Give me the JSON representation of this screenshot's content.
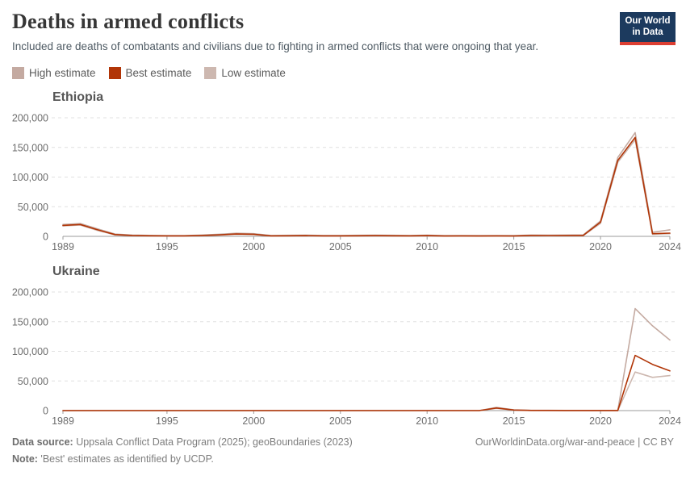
{
  "header": {
    "title": "Deaths in armed conflicts",
    "subtitle": "Included are deaths of combatants and civilians due to fighting in armed conflicts that were ongoing that year.",
    "logo": {
      "line1": "Our World",
      "line2": "in Data",
      "bg_color": "#1c3a5e",
      "bar_color": "#dc3e32"
    }
  },
  "legend": {
    "items": [
      {
        "label": "High estimate",
        "color": "#C4AAA1"
      },
      {
        "label": "Best estimate",
        "color": "#B13507"
      },
      {
        "label": "Low estimate",
        "color": "#CDB8B0"
      }
    ]
  },
  "chart_data": [
    {
      "type": "line",
      "title": "Ethiopia",
      "xlabel": "",
      "ylabel": "",
      "grid": true,
      "ylim": [
        0,
        200000
      ],
      "yticks": [
        0,
        50000,
        100000,
        150000,
        200000
      ],
      "xticks": [
        1989,
        1995,
        2000,
        2005,
        2010,
        2015,
        2020,
        2024
      ],
      "x": [
        1989,
        1990,
        1991,
        1992,
        1993,
        1994,
        1995,
        1996,
        1997,
        1998,
        1999,
        2000,
        2001,
        2002,
        2003,
        2004,
        2005,
        2006,
        2007,
        2008,
        2009,
        2010,
        2011,
        2012,
        2013,
        2014,
        2015,
        2016,
        2017,
        2018,
        2019,
        2020,
        2021,
        2022,
        2023,
        2024
      ],
      "series": [
        {
          "name": "High estimate",
          "color": "#C4AAA1",
          "values": [
            20000,
            21500,
            12500,
            3800,
            2200,
            1600,
            1300,
            1300,
            2200,
            3500,
            5200,
            4500,
            1500,
            1800,
            2000,
            1500,
            1500,
            1800,
            2000,
            1800,
            1500,
            2000,
            1200,
            1400,
            1200,
            1400,
            1200,
            2200,
            2000,
            2200,
            2500,
            26000,
            133000,
            175000,
            7000,
            11000
          ]
        },
        {
          "name": "Best estimate",
          "color": "#B13507",
          "values": [
            18500,
            20000,
            11000,
            3000,
            1500,
            1000,
            800,
            800,
            1500,
            2500,
            4000,
            3500,
            800,
            1000,
            1200,
            800,
            800,
            1000,
            1200,
            1000,
            800,
            1200,
            600,
            800,
            600,
            800,
            600,
            1500,
            1300,
            1500,
            1500,
            24000,
            128000,
            167000,
            4500,
            5500
          ]
        },
        {
          "name": "Low estimate",
          "color": "#CDB8B0",
          "values": [
            17500,
            19000,
            10000,
            2500,
            1200,
            800,
            600,
            600,
            1200,
            2000,
            3400,
            3000,
            600,
            800,
            900,
            600,
            600,
            800,
            900,
            800,
            600,
            900,
            500,
            600,
            500,
            600,
            500,
            1200,
            1000,
            1200,
            1200,
            22000,
            125000,
            163000,
            3500,
            4500
          ]
        }
      ]
    },
    {
      "type": "line",
      "title": "Ukraine",
      "xlabel": "",
      "ylabel": "",
      "grid": true,
      "ylim": [
        0,
        200000
      ],
      "yticks": [
        0,
        50000,
        100000,
        150000,
        200000
      ],
      "xticks": [
        1989,
        1995,
        2000,
        2005,
        2010,
        2015,
        2020,
        2024
      ],
      "x": [
        1989,
        1990,
        1991,
        1992,
        1993,
        1994,
        1995,
        1996,
        1997,
        1998,
        1999,
        2000,
        2001,
        2002,
        2003,
        2004,
        2005,
        2006,
        2007,
        2008,
        2009,
        2010,
        2011,
        2012,
        2013,
        2014,
        2015,
        2016,
        2017,
        2018,
        2019,
        2020,
        2021,
        2022,
        2023,
        2024
      ],
      "series": [
        {
          "name": "High estimate",
          "color": "#C4AAA1",
          "values": [
            0,
            0,
            0,
            0,
            0,
            0,
            0,
            0,
            0,
            0,
            0,
            0,
            0,
            0,
            0,
            0,
            0,
            0,
            0,
            0,
            0,
            0,
            0,
            0,
            0,
            5500,
            1400,
            400,
            350,
            300,
            250,
            200,
            200,
            172000,
            143000,
            119000
          ]
        },
        {
          "name": "Best estimate",
          "color": "#B13507",
          "values": [
            0,
            0,
            0,
            0,
            0,
            0,
            0,
            0,
            0,
            0,
            0,
            0,
            0,
            0,
            0,
            0,
            0,
            0,
            0,
            0,
            0,
            0,
            0,
            0,
            0,
            4300,
            1000,
            300,
            250,
            200,
            150,
            100,
            100,
            93000,
            78000,
            67000
          ]
        },
        {
          "name": "Low estimate",
          "color": "#CDB8B0",
          "values": [
            0,
            0,
            0,
            0,
            0,
            0,
            0,
            0,
            0,
            0,
            0,
            0,
            0,
            0,
            0,
            0,
            0,
            0,
            0,
            0,
            0,
            0,
            0,
            0,
            0,
            3800,
            900,
            250,
            200,
            150,
            100,
            80,
            80,
            65000,
            56000,
            59000
          ]
        }
      ]
    }
  ],
  "footer": {
    "source_label": "Data source:",
    "source_text": " Uppsala Conflict Data Program (2025); geoBoundaries (2023)",
    "note_label": "Note:",
    "note_text": " 'Best' estimates as identified by UCDP.",
    "link_text": "OurWorldinData.org/war-and-peace | CC BY"
  }
}
